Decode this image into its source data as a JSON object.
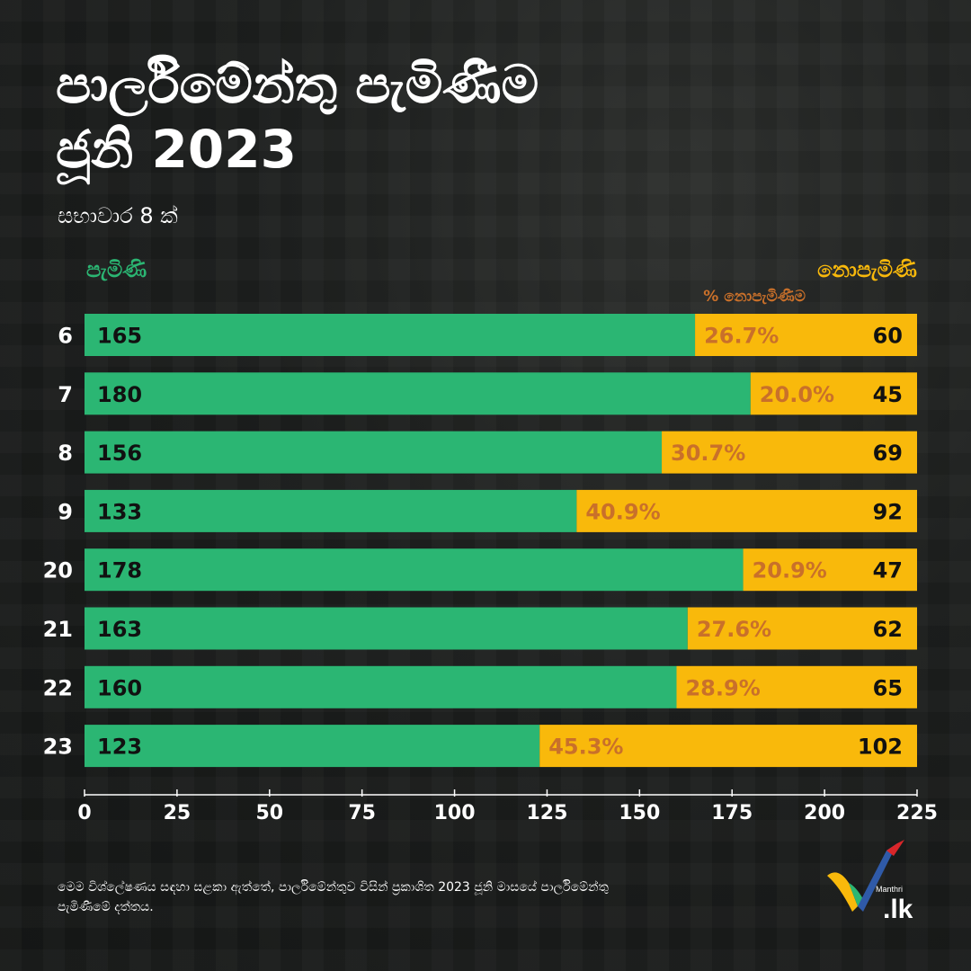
{
  "title_line1": "පාර්ලිමේන්තු පැමිණීම",
  "title_line2": "ජූනි 2023",
  "subtitle": "සභාවාර 8 ක්",
  "legend": {
    "present": "පැමිණි",
    "absent": "නොපැමිණි",
    "absent_pct": "% නොපැමිණීම"
  },
  "footnote": "මෙම විශ්ලේෂණය සඳහා සළකා ඇත්තේ, පාර්ලිමේන්තුව විසින් ප්‍රකාශිත 2023 ජූනි මාසයේ පාර්ලිමේන්තු පැමිණීමේ දත්තය.",
  "logo": {
    "text": ".lk",
    "small_text": "Manthri"
  },
  "colors": {
    "present": "#2bb673",
    "absent": "#f9b90b",
    "pct_text": "#c9702a",
    "background": "#1b1d1c"
  },
  "chart_data": {
    "type": "bar",
    "orientation": "horizontal",
    "stacked": true,
    "categories": [
      "6",
      "7",
      "8",
      "9",
      "20",
      "21",
      "22",
      "23"
    ],
    "series": [
      {
        "name": "පැමිණි",
        "values": [
          165,
          180,
          156,
          133,
          178,
          163,
          160,
          123
        ]
      },
      {
        "name": "නොපැමිණි",
        "values": [
          60,
          45,
          69,
          92,
          47,
          62,
          65,
          102
        ]
      }
    ],
    "pct_labels": [
      "26.7%",
      "20.0%",
      "30.7%",
      "40.9%",
      "20.9%",
      "27.6%",
      "28.9%",
      "45.3%"
    ],
    "xlim": [
      0,
      225
    ],
    "xticks": [
      0,
      25,
      50,
      75,
      100,
      125,
      150,
      175,
      200,
      225
    ],
    "grid": false
  }
}
